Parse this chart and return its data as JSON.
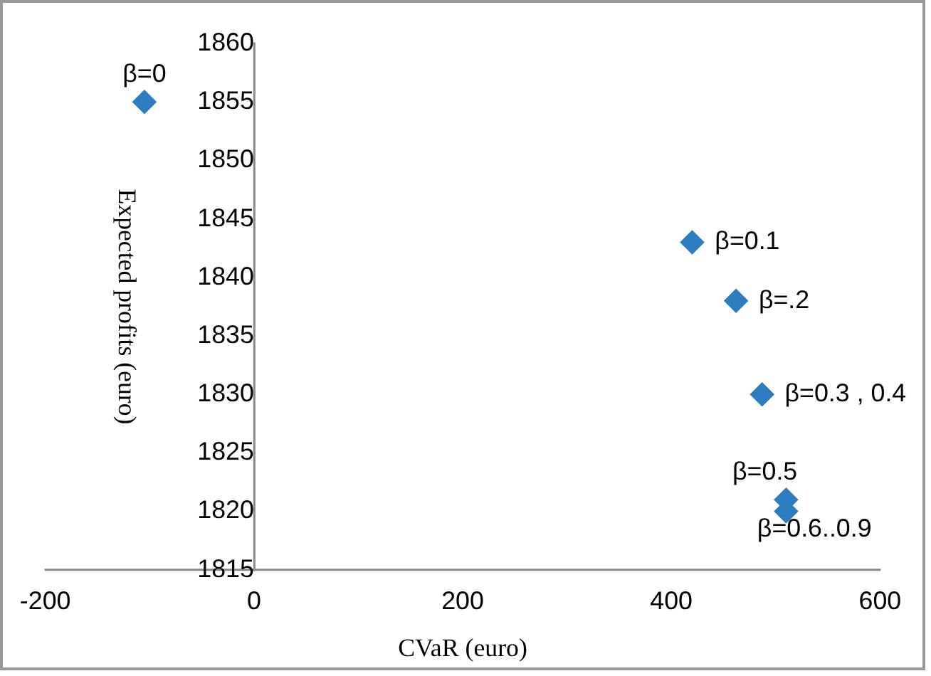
{
  "chart_data": {
    "type": "scatter",
    "xlabel": "CVaR (euro)",
    "ylabel": "Expected profits (euro)",
    "x": [
      -105,
      420,
      462,
      487,
      510,
      510
    ],
    "values": [
      1855,
      1843,
      1838,
      1830,
      1821,
      1820
    ],
    "color": "#2e7dc0",
    "marker": "diamond",
    "grid": false,
    "legend": false,
    "xlim": [
      -200,
      600
    ],
    "xticks": [
      -200,
      0,
      200,
      400,
      600
    ],
    "ylim": [
      1815,
      1860
    ],
    "yticks": [
      1815,
      1820,
      1825,
      1830,
      1835,
      1840,
      1845,
      1850,
      1855,
      1860
    ],
    "annotations": [
      {
        "text": "β=0",
        "x": -105,
        "y": 1855
      },
      {
        "text": "β=0.1",
        "x": 420,
        "y": 1843
      },
      {
        "text": "β=.2",
        "x": 462,
        "y": 1838
      },
      {
        "text": "β=0.3 , 0.4",
        "x": 487,
        "y": 1830
      },
      {
        "text": "β=0.5",
        "x": 510,
        "y": 1821
      },
      {
        "text": "β=0.6..0.9",
        "x": 510,
        "y": 1820
      }
    ]
  }
}
